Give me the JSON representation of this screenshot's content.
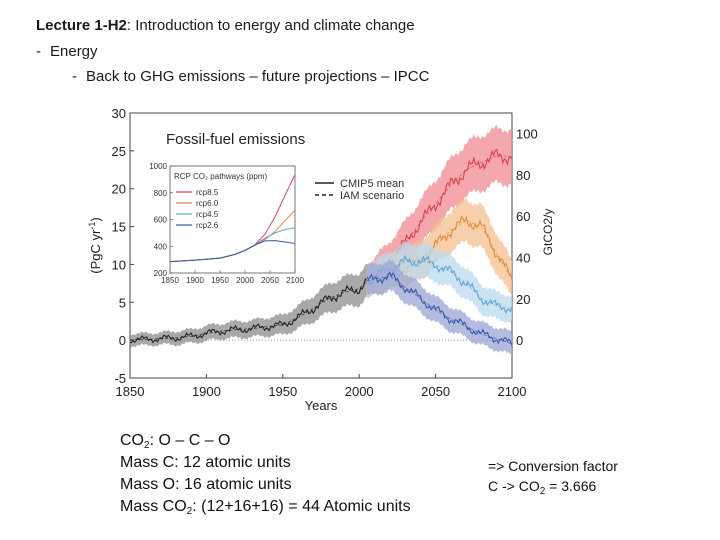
{
  "slide": {
    "title_bold": "Lecture 1-H2",
    "title_rest": ": Introduction to energy and climate change",
    "bullet1_dash": "-",
    "bullet1": "Energy",
    "bullet2_dash": "-",
    "bullet2": "Back to GHG emissions – future projections – IPCC"
  },
  "notes": {
    "co2_prefix": "CO",
    "co2_sub": "2",
    "co2_formula": ":  O – C – O",
    "mass_c": "Mass C: 12 atomic units",
    "mass_o": "Mass O: 16 atomic units",
    "mass_co2_prefix": "Mass CO",
    "mass_co2_sub": "2",
    "mass_co2_rest": ": (12+16+16) = 44 Atomic units"
  },
  "conversion": {
    "line1": "=> Conversion factor",
    "line2_prefix": "C -> CO",
    "line2_sub": "2",
    "line2_rest": " = 3.666"
  },
  "chart_data": {
    "type": "line",
    "title": "Fossil-fuel emissions",
    "xlabel": "Years",
    "ylabel_parts": [
      "(PgC yr",
      "-1",
      ")"
    ],
    "ylabel_right": "GtCO2/y",
    "xlim": [
      1850,
      2100
    ],
    "ylim": [
      -5,
      30
    ],
    "xticks": [
      1850,
      1900,
      1950,
      2000,
      2050,
      2100
    ],
    "yticks": [
      -5,
      0,
      5,
      10,
      15,
      20,
      25,
      30
    ],
    "right_ticks": [
      0,
      20,
      40,
      60,
      80,
      100
    ],
    "legend": [
      {
        "name": "CMIP5 mean",
        "style": "solid",
        "color": "#222222"
      },
      {
        "name": "IAM scenario",
        "style": "dashed",
        "color": "#222222"
      }
    ],
    "historical": {
      "name": "Historical (CMIP5 mean)",
      "color": "#222222",
      "band_color": "#8c8c8c",
      "x": [
        1850,
        1860,
        1870,
        1880,
        1890,
        1900,
        1910,
        1920,
        1930,
        1940,
        1950,
        1960,
        1970,
        1980,
        1990,
        2000,
        2005
      ],
      "y": [
        0.05,
        0.1,
        0.2,
        0.3,
        0.5,
        0.9,
        1.2,
        1.4,
        1.5,
        1.8,
        2.0,
        3.0,
        4.2,
        5.5,
        6.3,
        6.8,
        7.8
      ],
      "spread": [
        0.8,
        0.8,
        0.8,
        0.9,
        0.9,
        1.0,
        1.0,
        1.1,
        1.1,
        1.2,
        1.3,
        1.5,
        1.7,
        1.9,
        2.0,
        2.1,
        2.2
      ]
    },
    "series": [
      {
        "name": "RCP8.5",
        "color": "#d9434f",
        "band_color": "#f08a90",
        "x": [
          2005,
          2020,
          2030,
          2040,
          2050,
          2060,
          2070,
          2080,
          2090,
          2100
        ],
        "y": [
          7.8,
          10.5,
          12.8,
          15.5,
          18.0,
          20.5,
          22.5,
          23.5,
          24.3,
          24.3
        ],
        "spread": [
          2.0,
          2.5,
          2.8,
          3.0,
          3.2,
          3.4,
          3.5,
          3.6,
          3.6,
          3.6
        ]
      },
      {
        "name": "RCP6.0",
        "color": "#e28a3c",
        "band_color": "#f4c08f",
        "x": [
          2005,
          2020,
          2030,
          2040,
          2050,
          2060,
          2070,
          2080,
          2090,
          2100
        ],
        "y": [
          7.8,
          9.0,
          9.5,
          10.5,
          12.5,
          14.5,
          15.8,
          15.0,
          11.5,
          8.0
        ],
        "spread": [
          2.0,
          2.2,
          2.4,
          2.5,
          2.6,
          2.7,
          2.8,
          2.8,
          2.6,
          2.4
        ]
      },
      {
        "name": "RCP4.5",
        "color": "#62a6d6",
        "band_color": "#b9d9ef",
        "x": [
          2005,
          2020,
          2030,
          2040,
          2050,
          2060,
          2070,
          2080,
          2090,
          2100
        ],
        "y": [
          7.8,
          9.5,
          10.3,
          10.5,
          10.0,
          9.0,
          7.5,
          5.5,
          4.5,
          4.2
        ],
        "spread": [
          2.0,
          2.2,
          2.3,
          2.3,
          2.2,
          2.1,
          2.0,
          1.9,
          1.8,
          1.7
        ]
      },
      {
        "name": "RCP2.6",
        "color": "#3c56a8",
        "band_color": "#9aa6d6",
        "x": [
          2005,
          2020,
          2030,
          2040,
          2050,
          2060,
          2070,
          2080,
          2090,
          2100
        ],
        "y": [
          7.8,
          8.5,
          7.0,
          5.5,
          4.0,
          2.8,
          1.8,
          0.8,
          0.2,
          -0.5
        ],
        "spread": [
          2.0,
          2.0,
          1.9,
          1.8,
          1.7,
          1.6,
          1.5,
          1.5,
          1.5,
          1.5
        ]
      }
    ],
    "inset": {
      "title": "RCP CO₂ pathways (ppm)",
      "xlim": [
        1850,
        2100
      ],
      "ylim": [
        200,
        1000
      ],
      "xticks": [
        1850,
        1900,
        1950,
        2000,
        2050,
        2100
      ],
      "yticks": [
        200,
        400,
        600,
        800,
        1000
      ],
      "series": [
        {
          "name": "RCP8.5",
          "color": "#d9434f",
          "x": [
            1850,
            1900,
            1950,
            1980,
            2000,
            2020,
            2040,
            2060,
            2080,
            2100
          ],
          "y": [
            285,
            296,
            311,
            339,
            369,
            412,
            490,
            620,
            780,
            936
          ]
        },
        {
          "name": "RCP6.0",
          "color": "#e28a3c",
          "x": [
            1850,
            1900,
            1950,
            1980,
            2000,
            2020,
            2040,
            2060,
            2080,
            2100
          ],
          "y": [
            285,
            296,
            311,
            339,
            369,
            408,
            450,
            510,
            590,
            670
          ]
        },
        {
          "name": "RCP4.5",
          "color": "#62a6d6",
          "x": [
            1850,
            1900,
            1950,
            1980,
            2000,
            2020,
            2040,
            2060,
            2080,
            2100
          ],
          "y": [
            285,
            296,
            311,
            339,
            369,
            410,
            460,
            500,
            525,
            538
          ]
        },
        {
          "name": "RCP2.6",
          "color": "#3c56a8",
          "x": [
            1850,
            1900,
            1950,
            1980,
            2000,
            2020,
            2040,
            2060,
            2080,
            2100
          ],
          "y": [
            285,
            296,
            311,
            339,
            369,
            410,
            440,
            442,
            432,
            421
          ]
        }
      ]
    }
  }
}
